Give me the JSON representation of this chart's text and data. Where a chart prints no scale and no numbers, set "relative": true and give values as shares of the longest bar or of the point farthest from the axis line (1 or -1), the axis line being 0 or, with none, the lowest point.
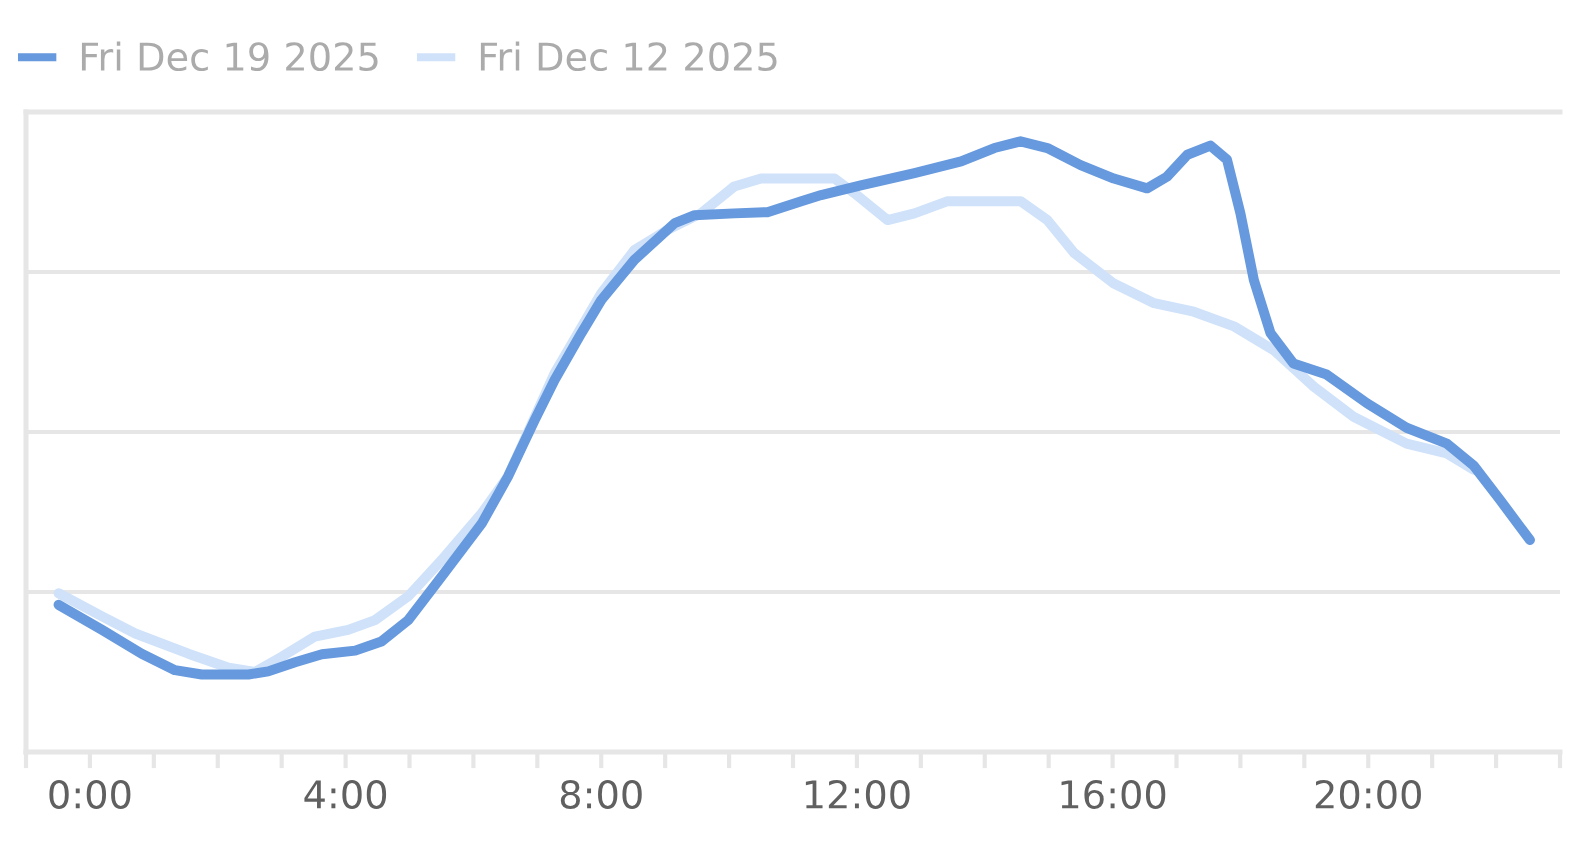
{
  "chart_data": {
    "type": "line",
    "relative": true,
    "xlim": [
      -1,
      23
    ],
    "xticks": [
      {
        "value": -1,
        "label": null
      },
      {
        "value": 0,
        "label": "0:00"
      },
      {
        "value": 1,
        "label": null
      },
      {
        "value": 2,
        "label": null
      },
      {
        "value": 3,
        "label": null
      },
      {
        "value": 4,
        "label": "4:00"
      },
      {
        "value": 5,
        "label": null
      },
      {
        "value": 6,
        "label": null
      },
      {
        "value": 7,
        "label": null
      },
      {
        "value": 8,
        "label": "8:00"
      },
      {
        "value": 9,
        "label": null
      },
      {
        "value": 10,
        "label": null
      },
      {
        "value": 11,
        "label": null
      },
      {
        "value": 12,
        "label": "12:00"
      },
      {
        "value": 13,
        "label": null
      },
      {
        "value": 14,
        "label": null
      },
      {
        "value": 15,
        "label": null
      },
      {
        "value": 16,
        "label": "16:00"
      },
      {
        "value": 17,
        "label": null
      },
      {
        "value": 18,
        "label": null
      },
      {
        "value": 19,
        "label": null
      },
      {
        "value": 20,
        "label": "20:00"
      },
      {
        "value": 21,
        "label": null
      },
      {
        "value": 22,
        "label": null
      },
      {
        "value": 23,
        "label": null
      }
    ],
    "tick_labels": "x",
    "grid": "y",
    "legend": "top left",
    "series": [
      {
        "name": "Fri Dec 19 2025",
        "color": "#6699dd",
        "x": [
          -0.49,
          0.19,
          0.81,
          1.33,
          1.75,
          2.48,
          2.79,
          3.21,
          3.63,
          4.15,
          4.56,
          4.98,
          5.5,
          6.13,
          6.54,
          6.96,
          7.27,
          7.69,
          8.0,
          8.52,
          9.15,
          9.46,
          10.08,
          10.6,
          11.13,
          11.44,
          12.06,
          12.9,
          13.63,
          14.15,
          14.56,
          14.98,
          15.5,
          16.02,
          16.54,
          16.85,
          17.17,
          17.53,
          17.79,
          18.0,
          18.21,
          18.47,
          18.83,
          19.35,
          19.98,
          20.6,
          21.23,
          21.65,
          22.06,
          22.53
        ],
        "values": [
          0.241,
          0.2,
          0.161,
          0.134,
          0.127,
          0.127,
          0.132,
          0.147,
          0.16,
          0.166,
          0.181,
          0.216,
          0.287,
          0.374,
          0.451,
          0.544,
          0.609,
          0.686,
          0.74,
          0.806,
          0.866,
          0.879,
          0.882,
          0.884,
          0.902,
          0.912,
          0.928,
          0.948,
          0.967,
          0.989,
          1.0,
          0.989,
          0.961,
          0.939,
          0.923,
          0.942,
          0.978,
          0.993,
          0.97,
          0.882,
          0.773,
          0.686,
          0.636,
          0.618,
          0.571,
          0.531,
          0.505,
          0.469,
          0.413,
          0.347
        ]
      },
      {
        "name": "Fri Dec 12 2025",
        "color": "#cfe2fa",
        "x": [
          -0.49,
          0.19,
          0.71,
          1.54,
          2.17,
          2.58,
          3.0,
          3.52,
          4.04,
          4.46,
          4.98,
          5.5,
          6.13,
          6.54,
          7.27,
          8.0,
          8.52,
          9.04,
          9.56,
          10.08,
          10.5,
          11.13,
          11.65,
          11.96,
          12.48,
          12.9,
          13.42,
          14.56,
          14.98,
          15.4,
          16.02,
          16.65,
          17.27,
          17.9,
          18.52,
          19.15,
          19.77,
          20.6,
          21.23,
          21.65
        ],
        "values": [
          0.26,
          0.222,
          0.194,
          0.161,
          0.138,
          0.131,
          0.156,
          0.189,
          0.2,
          0.216,
          0.255,
          0.314,
          0.391,
          0.451,
          0.62,
          0.751,
          0.822,
          0.855,
          0.882,
          0.926,
          0.939,
          0.939,
          0.939,
          0.915,
          0.871,
          0.882,
          0.902,
          0.902,
          0.871,
          0.817,
          0.767,
          0.735,
          0.721,
          0.697,
          0.658,
          0.598,
          0.549,
          0.505,
          0.489,
          0.462
        ]
      }
    ]
  }
}
